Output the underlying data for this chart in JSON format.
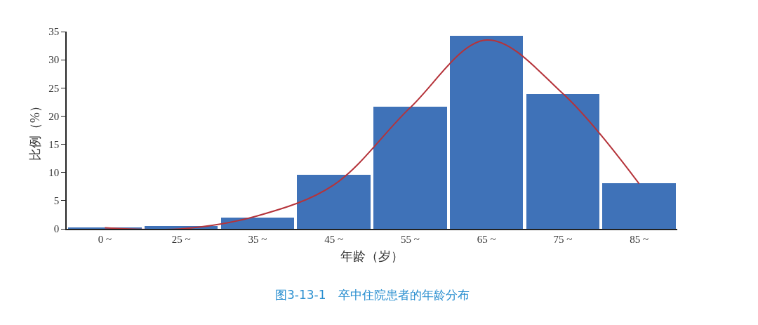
{
  "chart_data": {
    "type": "bar",
    "title": "图3-13-1　卒中住院患者的年龄分布",
    "xlabel": "年龄（岁）",
    "ylabel": "比例（%）",
    "categories": [
      "0 ~",
      "25 ~",
      "35 ~",
      "45 ~",
      "55 ~",
      "65 ~",
      "75 ~",
      "85 ~"
    ],
    "series": [
      {
        "color": "#3f72b8",
        "values": [
          0.2,
          0.5,
          2.0,
          9.6,
          21.7,
          34.3,
          23.9,
          8.1
        ]
      },
      {
        "type": "line",
        "color": "#b5333a",
        "values": [
          0.2,
          0.0,
          2.3,
          7.8,
          21.5,
          33.5,
          24.0,
          8.0
        ]
      }
    ],
    "ylim": [
      0,
      35
    ],
    "yticks": [
      0,
      5,
      10,
      15,
      20,
      25,
      30,
      35
    ]
  }
}
